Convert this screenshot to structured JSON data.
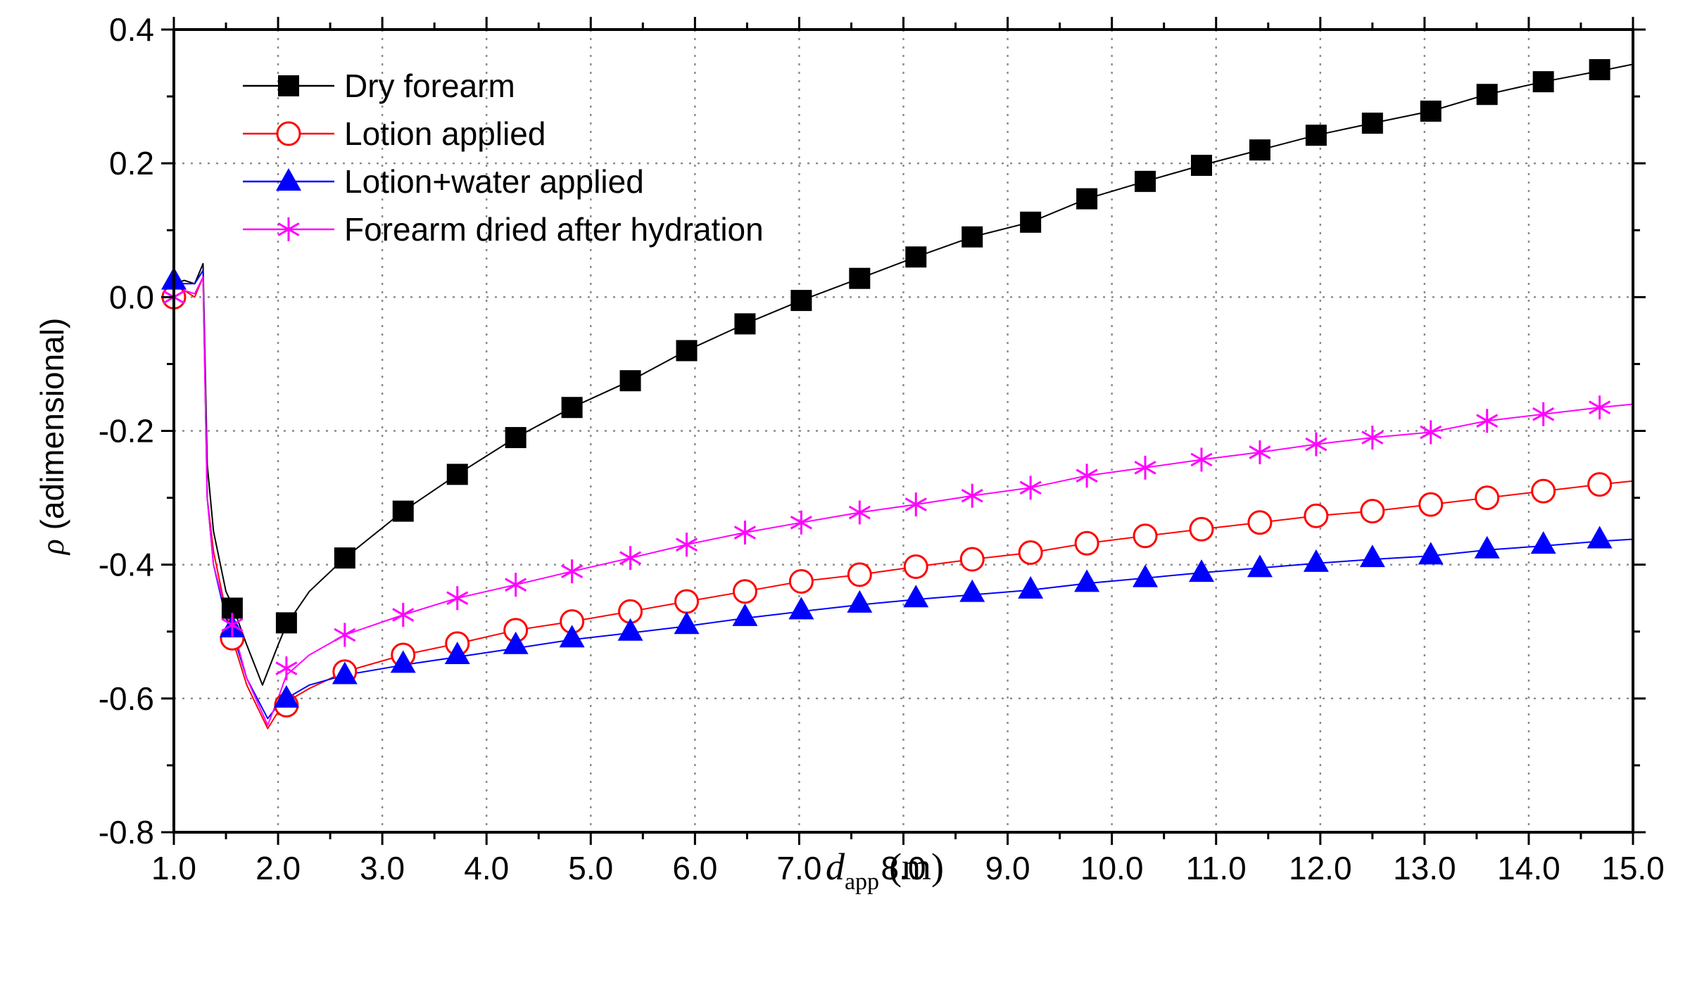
{
  "chart_data": {
    "type": "line",
    "xlabel": {
      "main": "d",
      "sub": "app",
      "unit": "(m)"
    },
    "ylabel": {
      "symbol": "ρ",
      "text": " (adimensional)"
    },
    "xlim": [
      1.0,
      15.0
    ],
    "ylim": [
      -0.8,
      0.4
    ],
    "x_ticks": [
      "1.0",
      "2.0",
      "3.0",
      "4.0",
      "5.0",
      "6.0",
      "7.0",
      "8.0",
      "9.0",
      "10.0",
      "11.0",
      "12.0",
      "13.0",
      "14.0",
      "15.0"
    ],
    "x_tick_values": [
      1,
      2,
      3,
      4,
      5,
      6,
      7,
      8,
      9,
      10,
      11,
      12,
      13,
      14,
      15
    ],
    "y_ticks": [
      "0.4",
      "0.2",
      "0.0",
      "-0.2",
      "-0.4",
      "-0.6",
      "-0.8"
    ],
    "y_tick_values": [
      0.4,
      0.2,
      0.0,
      -0.2,
      -0.4,
      -0.6,
      -0.8
    ],
    "grid": true,
    "legend_position": "top-left",
    "marker_x": [
      1.0,
      1.56,
      2.08,
      2.64,
      3.2,
      3.72,
      4.28,
      4.82,
      5.38,
      5.92,
      6.48,
      7.02,
      7.58,
      8.12,
      8.66,
      9.22,
      9.76,
      10.32,
      10.86,
      11.42,
      11.96,
      12.5,
      13.06,
      13.6,
      14.14,
      14.68
    ],
    "series": [
      {
        "name": "Dry forearm",
        "color": "#000000",
        "marker": "filled-square",
        "line_x": [
          1.0,
          1.1,
          1.2,
          1.28,
          1.32,
          1.38,
          1.5,
          1.56,
          1.7,
          1.85,
          2.0,
          2.08,
          2.3,
          2.64,
          3.2,
          3.72,
          4.28,
          4.82,
          5.38,
          5.92,
          6.48,
          7.02,
          7.58,
          8.12,
          8.66,
          9.22,
          9.76,
          10.32,
          10.86,
          11.42,
          11.96,
          12.5,
          13.06,
          13.6,
          14.14,
          14.68,
          15.0
        ],
        "line_y": [
          0.02,
          0.025,
          0.02,
          0.05,
          -0.25,
          -0.35,
          -0.44,
          -0.46,
          -0.52,
          -0.58,
          -0.52,
          -0.49,
          -0.44,
          -0.39,
          -0.32,
          -0.265,
          -0.21,
          -0.165,
          -0.125,
          -0.08,
          -0.04,
          -0.005,
          0.028,
          0.06,
          0.09,
          0.112,
          0.147,
          0.173,
          0.197,
          0.22,
          0.242,
          0.26,
          0.278,
          0.303,
          0.322,
          0.338,
          0.348
        ],
        "marker_y": [
          null,
          -0.465,
          -0.487,
          -0.39,
          -0.32,
          -0.265,
          -0.21,
          -0.165,
          -0.125,
          -0.08,
          -0.04,
          -0.005,
          0.028,
          0.06,
          0.09,
          0.112,
          0.147,
          0.173,
          0.197,
          0.22,
          0.242,
          0.26,
          0.278,
          0.303,
          0.322,
          0.34
        ]
      },
      {
        "name": "Lotion applied",
        "color": "#ff0000",
        "marker": "open-circle",
        "line_x": [
          1.0,
          1.1,
          1.2,
          1.28,
          1.32,
          1.38,
          1.5,
          1.56,
          1.7,
          1.9,
          2.0,
          2.08,
          2.3,
          2.64,
          3.2,
          3.72,
          4.28,
          4.82,
          5.38,
          5.92,
          6.48,
          7.02,
          7.58,
          8.12,
          8.66,
          9.22,
          9.76,
          10.32,
          10.86,
          11.42,
          11.96,
          12.5,
          13.06,
          13.6,
          14.14,
          14.68,
          15.0
        ],
        "line_y": [
          0.0,
          0.01,
          0.0,
          0.03,
          -0.3,
          -0.38,
          -0.47,
          -0.51,
          -0.58,
          -0.645,
          -0.62,
          -0.605,
          -0.585,
          -0.56,
          -0.535,
          -0.518,
          -0.498,
          -0.485,
          -0.47,
          -0.455,
          -0.44,
          -0.425,
          -0.415,
          -0.403,
          -0.392,
          -0.382,
          -0.368,
          -0.357,
          -0.347,
          -0.337,
          -0.327,
          -0.32,
          -0.31,
          -0.3,
          -0.29,
          -0.28,
          -0.275
        ],
        "marker_y": [
          0.0,
          -0.51,
          -0.61,
          -0.56,
          -0.535,
          -0.518,
          -0.498,
          -0.485,
          -0.47,
          -0.455,
          -0.44,
          -0.425,
          -0.415,
          -0.403,
          -0.392,
          -0.382,
          -0.368,
          -0.357,
          -0.347,
          -0.337,
          -0.327,
          -0.32,
          -0.31,
          -0.3,
          -0.29,
          -0.28
        ]
      },
      {
        "name": "Lotion+water applied",
        "color": "#0000ff",
        "marker": "filled-triangle",
        "line_x": [
          1.0,
          1.1,
          1.2,
          1.28,
          1.32,
          1.38,
          1.5,
          1.56,
          1.7,
          1.9,
          2.0,
          2.08,
          2.3,
          2.64,
          3.2,
          3.72,
          4.28,
          4.82,
          5.38,
          5.92,
          6.48,
          7.02,
          7.58,
          8.12,
          8.66,
          9.22,
          9.76,
          10.32,
          10.86,
          11.42,
          11.96,
          12.5,
          13.06,
          13.6,
          14.14,
          14.68,
          15.0
        ],
        "line_y": [
          0.025,
          0.02,
          0.02,
          0.04,
          -0.3,
          -0.4,
          -0.48,
          -0.5,
          -0.57,
          -0.63,
          -0.61,
          -0.6,
          -0.58,
          -0.565,
          -0.55,
          -0.538,
          -0.525,
          -0.512,
          -0.502,
          -0.492,
          -0.48,
          -0.47,
          -0.46,
          -0.452,
          -0.445,
          -0.438,
          -0.428,
          -0.42,
          -0.412,
          -0.405,
          -0.398,
          -0.392,
          -0.387,
          -0.378,
          -0.372,
          -0.365,
          -0.362
        ],
        "marker_y": [
          0.025,
          -0.495,
          -0.6,
          -0.565,
          -0.548,
          -0.535,
          -0.52,
          -0.51,
          -0.5,
          -0.49,
          -0.478,
          -0.468,
          -0.458,
          -0.45,
          -0.442,
          -0.437,
          -0.427,
          -0.42,
          -0.412,
          -0.405,
          -0.397,
          -0.39,
          -0.386,
          -0.377,
          -0.37,
          -0.362
        ]
      },
      {
        "name": "Forearm dried after hydration",
        "color": "#ff00ff",
        "marker": "asterisk",
        "line_x": [
          1.0,
          1.1,
          1.2,
          1.28,
          1.32,
          1.38,
          1.5,
          1.56,
          1.7,
          1.9,
          2.0,
          2.08,
          2.3,
          2.64,
          3.2,
          3.72,
          4.28,
          4.82,
          5.38,
          5.92,
          6.48,
          7.02,
          7.58,
          8.12,
          8.66,
          9.22,
          9.76,
          10.32,
          10.86,
          11.42,
          11.96,
          12.5,
          13.06,
          13.6,
          14.14,
          14.68,
          15.0
        ],
        "line_y": [
          0.0,
          0.01,
          0.005,
          0.03,
          -0.3,
          -0.4,
          -0.47,
          -0.49,
          -0.57,
          -0.64,
          -0.6,
          -0.565,
          -0.535,
          -0.505,
          -0.475,
          -0.45,
          -0.43,
          -0.41,
          -0.39,
          -0.37,
          -0.352,
          -0.337,
          -0.322,
          -0.31,
          -0.297,
          -0.285,
          -0.267,
          -0.255,
          -0.243,
          -0.232,
          -0.22,
          -0.21,
          -0.202,
          -0.185,
          -0.175,
          -0.165,
          -0.16
        ],
        "marker_y": [
          0.0,
          -0.49,
          -0.555,
          -0.505,
          -0.475,
          -0.45,
          -0.43,
          -0.41,
          -0.39,
          -0.37,
          -0.352,
          -0.337,
          -0.322,
          -0.31,
          -0.297,
          -0.285,
          -0.267,
          -0.255,
          -0.243,
          -0.232,
          -0.22,
          -0.21,
          -0.202,
          -0.185,
          -0.175,
          -0.165
        ]
      }
    ]
  }
}
